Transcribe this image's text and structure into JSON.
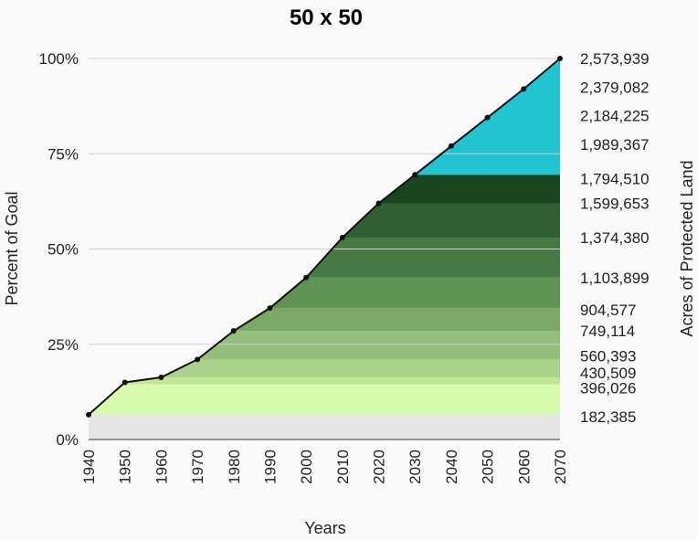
{
  "chart_data": {
    "type": "area",
    "title": "50 x 50",
    "xlabel": "Years",
    "ylabel": "Percent of Goal",
    "y2label": "Acres of Protected Land",
    "x": [
      1940,
      1950,
      1960,
      1970,
      1980,
      1990,
      2000,
      2010,
      2020,
      2030,
      2040,
      2050,
      2060,
      2070
    ],
    "values": [
      6.5,
      15,
      16.3,
      21,
      28.5,
      34.5,
      42.5,
      53,
      62,
      69.5,
      77,
      84.5,
      92,
      100
    ],
    "xlim": [
      1940,
      2070
    ],
    "ylim": [
      0,
      100
    ],
    "y_ticks": [
      0,
      25,
      50,
      75,
      100
    ],
    "y_tick_labels": [
      "0%",
      "25%",
      "50%",
      "75%",
      "100%"
    ],
    "x_tick_labels": [
      "1940",
      "1950",
      "1960",
      "1970",
      "1980",
      "1990",
      "2000",
      "2010",
      "2020",
      "2030",
      "2040",
      "2050",
      "2060",
      "2070"
    ],
    "grid": true,
    "bands": [
      {
        "from": 0,
        "to": 6.5,
        "color": "#e6e6e6"
      },
      {
        "from": 6.5,
        "to": 14.5,
        "color": "#d8fcae"
      },
      {
        "from": 14.5,
        "to": 16.3,
        "color": "#c2e696"
      },
      {
        "from": 16.3,
        "to": 21,
        "color": "#aad28a"
      },
      {
        "from": 21,
        "to": 28.5,
        "color": "#94be7c"
      },
      {
        "from": 28.5,
        "to": 34.5,
        "color": "#7aa866"
      },
      {
        "from": 34.5,
        "to": 42.5,
        "color": "#5f9356"
      },
      {
        "from": 42.5,
        "to": 53,
        "color": "#467944"
      },
      {
        "from": 53,
        "to": 62,
        "color": "#2f5f33"
      },
      {
        "from": 62,
        "to": 69.5,
        "color": "#18461f"
      },
      {
        "from": 69.5,
        "to": 100,
        "color": "#21c4d0"
      }
    ],
    "right_labels": [
      {
        "value": 100,
        "label": "2,573,939"
      },
      {
        "value": 92.5,
        "label": "2,379,082"
      },
      {
        "value": 85,
        "label": "2,184,225"
      },
      {
        "value": 77.5,
        "label": "1,989,367"
      },
      {
        "value": 68.5,
        "label": "1,794,510"
      },
      {
        "value": 62,
        "label": "1,599,653"
      },
      {
        "value": 53,
        "label": "1,374,380"
      },
      {
        "value": 42.5,
        "label": "1,103,899"
      },
      {
        "value": 34,
        "label": "904,577"
      },
      {
        "value": 28.5,
        "label": "749,114"
      },
      {
        "value": 22,
        "label": "560,393"
      },
      {
        "value": 17.5,
        "label": "430,509"
      },
      {
        "value": 13.5,
        "label": "396,026"
      },
      {
        "value": 6,
        "label": "182,385"
      }
    ]
  }
}
